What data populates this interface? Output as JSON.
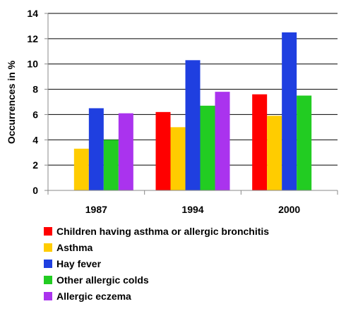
{
  "chart_data": {
    "type": "bar",
    "title": "",
    "xlabel": "",
    "ylabel": "Occurrences in %",
    "ylim": [
      0,
      14
    ],
    "yticks": [
      0,
      2,
      4,
      6,
      8,
      10,
      12,
      14
    ],
    "grid": "horizontal",
    "legend_position": "bottom",
    "categories": [
      "1987",
      "1994",
      "2000"
    ],
    "series": [
      {
        "name": "Children having asthma or allergic bronchitis",
        "color": "#ff0000",
        "values": [
          null,
          6.2,
          7.6
        ]
      },
      {
        "name": "Asthma",
        "color": "#ffcc00",
        "values": [
          3.3,
          5.0,
          5.9
        ]
      },
      {
        "name": "Hay fever",
        "color": "#1f3fe0",
        "values": [
          6.5,
          10.3,
          12.5
        ]
      },
      {
        "name": "Other allergic colds",
        "color": "#22cc22",
        "values": [
          4.0,
          6.7,
          7.5
        ]
      },
      {
        "name": "Allergic eczema",
        "color": "#aa33ee",
        "values": [
          6.1,
          7.8,
          null
        ]
      }
    ]
  }
}
